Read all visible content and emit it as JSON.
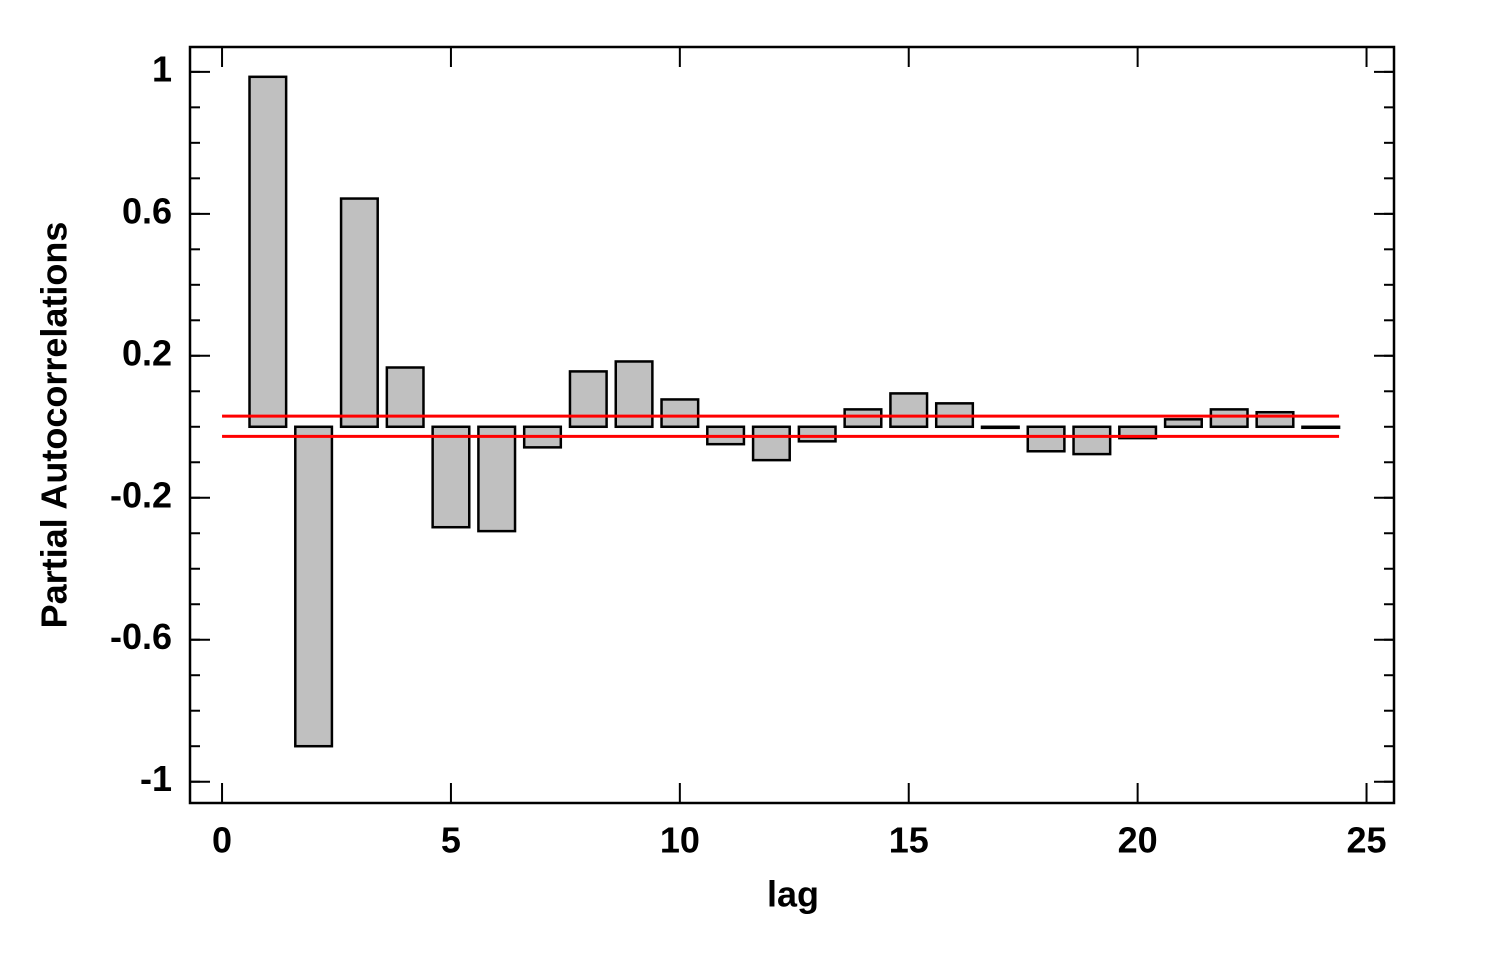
{
  "chart_data": {
    "type": "bar",
    "x_label": "lag",
    "y_label": "Partial Autocorrelations",
    "x": [
      1,
      2,
      3,
      4,
      5,
      6,
      7,
      8,
      9,
      10,
      11,
      12,
      13,
      14,
      15,
      16,
      17,
      18,
      19,
      20,
      21,
      22,
      23,
      24
    ],
    "values": [
      0.986,
      -0.9,
      0.643,
      0.167,
      -0.283,
      -0.294,
      -0.058,
      0.156,
      0.184,
      0.077,
      -0.049,
      -0.094,
      -0.041,
      0.049,
      0.094,
      0.066,
      -0.003,
      -0.069,
      -0.077,
      -0.032,
      0.021,
      0.049,
      0.041,
      0
    ],
    "color": "#c0c0c0",
    "xlim": [
      -0.7,
      25.6
    ],
    "ylim": [
      -1.06,
      1.07
    ],
    "xticks": [
      0,
      5,
      10,
      15,
      20,
      25
    ],
    "yticks": [
      -1,
      -0.6,
      -0.2,
      0.2,
      0.6,
      1
    ],
    "y_minor_tick_step": 0.1,
    "reference_lines": [
      {
        "value": 0.03,
        "color": "#ff0000"
      },
      {
        "value": -0.027,
        "color": "#ff0000"
      }
    ]
  }
}
